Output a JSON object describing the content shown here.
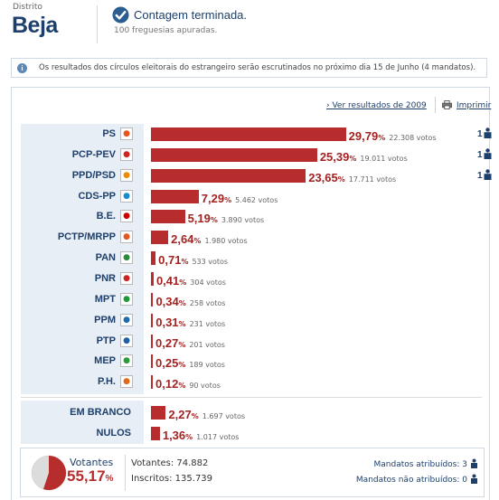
{
  "header": {
    "district_label": "Distrito",
    "district_name": "Beja",
    "status_title": "Contagem terminada.",
    "status_sub": "100 freguesias apuradas."
  },
  "info": {
    "text": "Os resultados dos círculos eleitorais do estrangeiro serão escrutinados no próximo dia 15 de Junho (4 mandatos)."
  },
  "links": {
    "results_2009": "Ver resultados de 2009",
    "print": "Imprimir"
  },
  "colors": {
    "bar": "#b72d2d",
    "navy": "#1d3f6b",
    "panel": "#e8eef5"
  },
  "parties": [
    {
      "name": "PS",
      "pct": "29,79",
      "votes": "22.308 votos",
      "mandates": "1",
      "share": 29.79,
      "logo": "ps-logo-icon",
      "logo_color": "#e8541c"
    },
    {
      "name": "PCP-PEV",
      "pct": "25,39",
      "votes": "19.011 votos",
      "mandates": "1",
      "share": 25.39,
      "logo": "cdu-logo-icon",
      "logo_color": "#d42323"
    },
    {
      "name": "PPD/PSD",
      "pct": "23,65",
      "votes": "17.711 votos",
      "mandates": "1",
      "share": 23.65,
      "logo": "psd-logo-icon",
      "logo_color": "#f08a00"
    },
    {
      "name": "CDS-PP",
      "pct": "7,29",
      "votes": "5.462 votos",
      "mandates": "",
      "share": 7.29,
      "logo": "cds-logo-icon",
      "logo_color": "#1a8bd0"
    },
    {
      "name": "B.E.",
      "pct": "5,19",
      "votes": "3.890 votos",
      "mandates": "",
      "share": 5.19,
      "logo": "be-logo-icon",
      "logo_color": "#d10000"
    },
    {
      "name": "PCTP/MRPP",
      "pct": "2,64",
      "votes": "1.980 votos",
      "mandates": "",
      "share": 2.64,
      "logo": "mrpp-logo-icon",
      "logo_color": "#e5561f"
    },
    {
      "name": "PAN",
      "pct": "0,71",
      "votes": "533 votos",
      "mandates": "",
      "share": 0.71,
      "logo": "pan-logo-icon",
      "logo_color": "#2a8a3c"
    },
    {
      "name": "PNR",
      "pct": "0,41",
      "votes": "304 votos",
      "mandates": "",
      "share": 0.41,
      "logo": "pnr-logo-icon",
      "logo_color": "#c22"
    },
    {
      "name": "MPT",
      "pct": "0,34",
      "votes": "258 votos",
      "mandates": "",
      "share": 0.34,
      "logo": "mpt-logo-icon",
      "logo_color": "#1f9a3a"
    },
    {
      "name": "PPM",
      "pct": "0,31",
      "votes": "231 votos",
      "mandates": "",
      "share": 0.31,
      "logo": "ppm-logo-icon",
      "logo_color": "#1e6bb0"
    },
    {
      "name": "PTP",
      "pct": "0,27",
      "votes": "201 votos",
      "mandates": "",
      "share": 0.27,
      "logo": "ptp-logo-icon",
      "logo_color": "#1f5fa8"
    },
    {
      "name": "MEP",
      "pct": "0,25",
      "votes": "189 votos",
      "mandates": "",
      "share": 0.25,
      "logo": "mep-logo-icon",
      "logo_color": "#2a9a3a"
    },
    {
      "name": "P.H.",
      "pct": "0,12",
      "votes": "90 votos",
      "mandates": "",
      "share": 0.12,
      "logo": "ph-logo-icon",
      "logo_color": "#e06a1a"
    }
  ],
  "others": [
    {
      "name": "EM BRANCO",
      "pct": "2,27",
      "votes": "1.697 votos",
      "share": 2.27
    },
    {
      "name": "NULOS",
      "pct": "1,36",
      "votes": "1.017 votos",
      "share": 1.36
    }
  ],
  "footer": {
    "votantes_label": "Votantes",
    "votantes_pct": "55,17",
    "votantes_share": 55.17,
    "votantes_count": "Votantes: 74.882",
    "inscritos_count": "Inscritos: 135.739",
    "mandates_assigned": "Mandatos atribuídos: 3",
    "mandates_unassigned": "Mandatos não atribuídos: 0"
  }
}
